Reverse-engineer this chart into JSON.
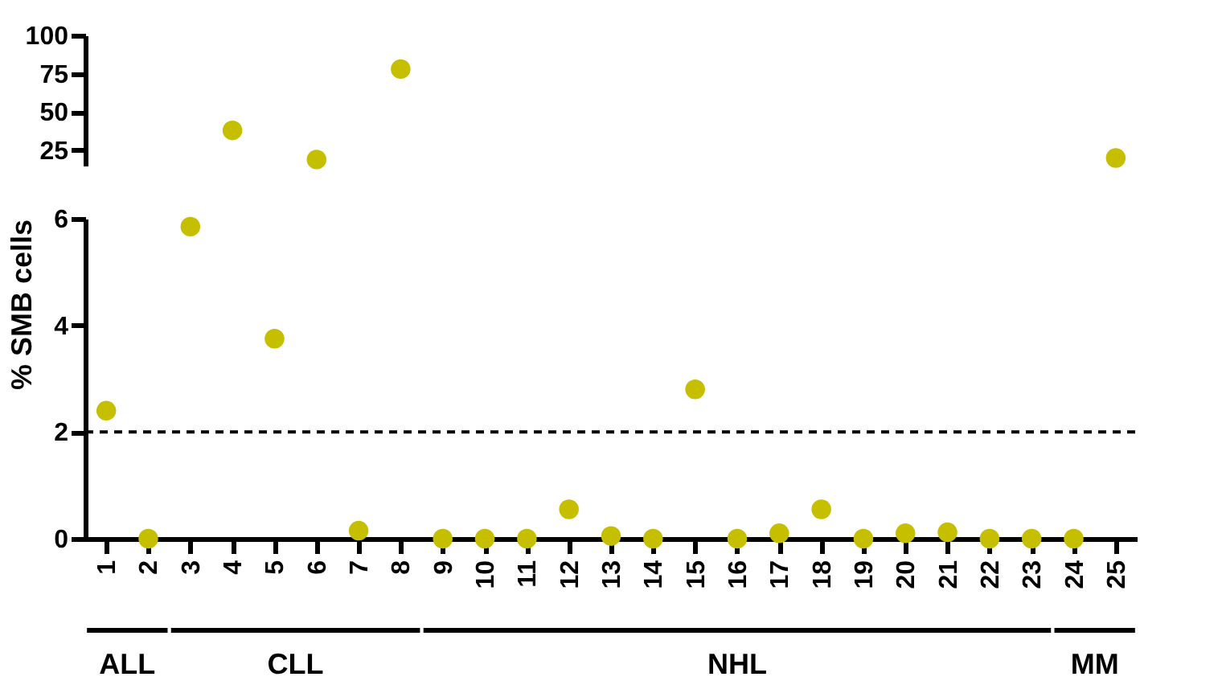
{
  "chart_data": [
    {
      "type": "scatter",
      "categories": [
        "1",
        "2",
        "3",
        "4",
        "5",
        "6",
        "7",
        "8",
        "9",
        "10",
        "11",
        "12",
        "13",
        "14",
        "15",
        "16",
        "17",
        "18",
        "19",
        "20",
        "21",
        "22",
        "23",
        "24",
        "25"
      ],
      "series": [
        {
          "color": "#c5bf00",
          "values": [
            null,
            null,
            null,
            38,
            null,
            19,
            null,
            78,
            null,
            null,
            null,
            null,
            null,
            null,
            null,
            null,
            null,
            null,
            null,
            null,
            null,
            null,
            null,
            null,
            20
          ]
        }
      ],
      "ylim": [
        15,
        100
      ],
      "yticks": [
        25,
        50,
        75,
        100
      ],
      "tick_labels": "y",
      "marker": "circle",
      "grid": false
    },
    {
      "type": "scatter",
      "categories": [
        "1",
        "2",
        "3",
        "4",
        "5",
        "6",
        "7",
        "8",
        "9",
        "10",
        "11",
        "12",
        "13",
        "14",
        "15",
        "16",
        "17",
        "18",
        "19",
        "20",
        "21",
        "22",
        "23",
        "24",
        "25"
      ],
      "series": [
        {
          "color": "#c5bf00",
          "values": [
            2.4,
            0,
            5.85,
            null,
            3.75,
            null,
            0.15,
            null,
            0,
            0,
            0,
            0.55,
            0.05,
            0,
            2.8,
            0,
            0.1,
            0.55,
            0,
            0.1,
            0.12,
            0,
            0,
            0,
            null
          ]
        }
      ],
      "ylim": [
        0,
        6
      ],
      "yticks": [
        0,
        2,
        4,
        6
      ],
      "ylabel": "% SMB cells",
      "marker": "circle",
      "grid": false,
      "ref_lines": [
        {
          "axis": "y",
          "value": 2,
          "line_style": "dashed",
          "color": "#000000"
        }
      ],
      "annotations": [
        "ALL",
        "CLL",
        "NHL",
        "MM"
      ]
    }
  ]
}
